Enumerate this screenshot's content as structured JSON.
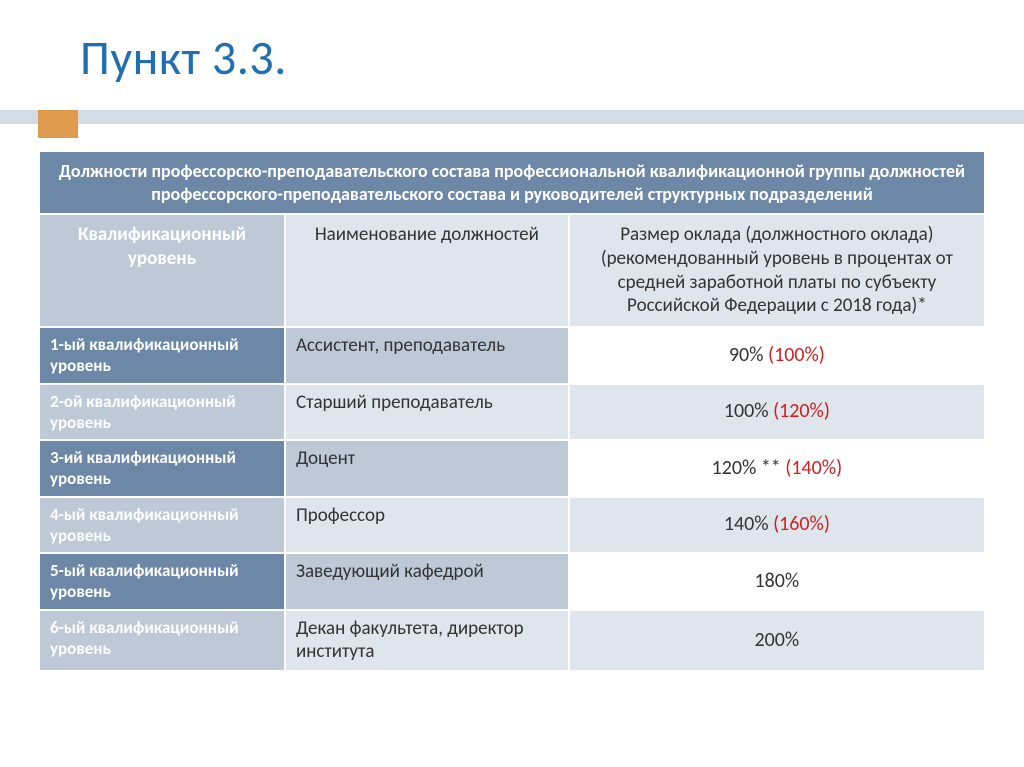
{
  "title": {
    "text": "Пункт 3.3.",
    "color": "#1f6fb2"
  },
  "accent_color": "#e09a4e",
  "rule_color": "#d3dbe4",
  "table": {
    "top_header": "Должности профессорско-преподавательского состава профессиональной квалификационной группы должностей профессорского-преподавательского состава и руководителей структурных подразделений",
    "columns": {
      "level": "Квалификационный уровень",
      "position": "Наименование должностей",
      "salary": "Размер оклада (должностного оклада) (рекомендованный уровень в процентах от средней заработной платы по субъекту Российской Федерации с 2018 года)*"
    },
    "rows": [
      {
        "level": "1-ый квалификационный уровень",
        "position": "Ассистент, преподаватель",
        "salary_main": "90%",
        "salary_extra": "(100%)",
        "extra_red": true,
        "level_bg": "#6d88a6",
        "pos_bg": "#bdc9d6",
        "sal_bg": "#ffffff"
      },
      {
        "level": "2-ой квалификационный уровень",
        "position": "Старший преподаватель",
        "salary_main": "100%",
        "salary_extra": "(120%)",
        "extra_red": true,
        "level_bg": "#bdc9d6",
        "pos_bg": "#dfe5ec",
        "sal_bg": "#dfe5ec"
      },
      {
        "level": "3-ий квалификационный уровень",
        "position": "Доцент",
        "salary_main": "120% **",
        "salary_extra": "(140%)",
        "extra_red": true,
        "level_bg": "#6d88a6",
        "pos_bg": "#bdc9d6",
        "sal_bg": "#ffffff"
      },
      {
        "level": "4-ый квалификационный уровень",
        "position": "Профессор",
        "salary_main": "140%",
        "salary_extra": "(160%)",
        "extra_red": true,
        "level_bg": "#bdc9d6",
        "pos_bg": "#dfe5ec",
        "sal_bg": "#dfe5ec"
      },
      {
        "level": "5-ый квалификационный уровень",
        "position": "Заведующий кафедрой",
        "salary_main": "180%",
        "salary_extra": "",
        "extra_red": false,
        "level_bg": "#6d88a6",
        "pos_bg": "#bdc9d6",
        "sal_bg": "#ffffff"
      },
      {
        "level": "6-ый квалификационный уровень",
        "position": "Декан факультета, директор института",
        "salary_main": "200%",
        "salary_extra": "",
        "extra_red": false,
        "level_bg": "#bdc9d6",
        "pos_bg": "#dfe5ec",
        "sal_bg": "#dfe5ec"
      }
    ]
  }
}
